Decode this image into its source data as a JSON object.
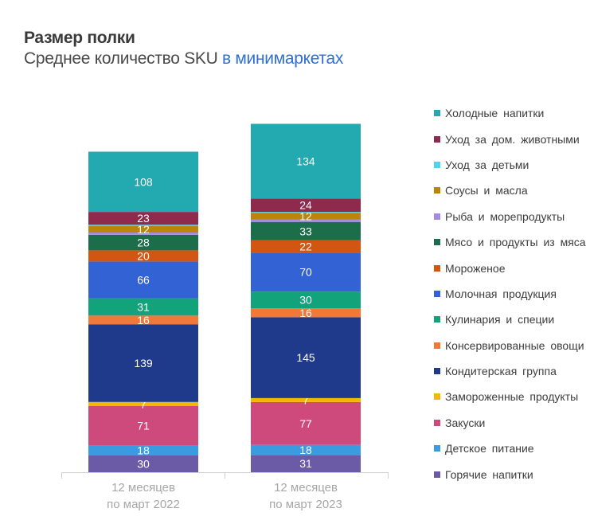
{
  "header": {
    "title": "Размер полки",
    "subtitle_main": "Среднее количество SKU",
    "subtitle_accent": "в минимаркетах"
  },
  "chart_data": {
    "type": "bar",
    "stacked": true,
    "categories": [
      "12 месяцев\nпо март 2022",
      "12 месяцев\nпо март 2023"
    ],
    "category_lines": [
      [
        "12 месяцев",
        "по март 2022"
      ],
      [
        "12 месяцев",
        "по март 2023"
      ]
    ],
    "series": [
      {
        "name": "Горячие напитки",
        "color": "#6b5aa6",
        "values": [
          30,
          31
        ]
      },
      {
        "name": "Детское питание",
        "color": "#3a9be0",
        "values": [
          18,
          18
        ]
      },
      {
        "name": "Закуски",
        "color": "#cf4a7c",
        "values": [
          71,
          77
        ]
      },
      {
        "name": "Замороженные продукты",
        "color": "#f5b800",
        "values": [
          7,
          7
        ]
      },
      {
        "name": "Кондитерская группа",
        "color": "#1f3a8a",
        "values": [
          139,
          145
        ]
      },
      {
        "name": "Консервированные овощи",
        "color": "#f07838",
        "values": [
          16,
          16
        ]
      },
      {
        "name": "Кулинария и специи",
        "color": "#12a37a",
        "values": [
          31,
          30
        ]
      },
      {
        "name": "Молочная продукция",
        "color": "#3262d4",
        "values": [
          66,
          70
        ]
      },
      {
        "name": "Мороженое",
        "color": "#d35512",
        "values": [
          20,
          22
        ]
      },
      {
        "name": "Мясо и продукты из мяса",
        "color": "#1c6d4a",
        "values": [
          28,
          33
        ]
      },
      {
        "name": "Рыба и морепродукты",
        "color": "#a58be6",
        "values": [
          4,
          4
        ]
      },
      {
        "name": "Соусы и масла",
        "color": "#b8860b",
        "values": [
          12,
          12
        ]
      },
      {
        "name": "Уход за детьми",
        "color": "#4fd3f0",
        "values": [
          2,
          2
        ]
      },
      {
        "name": "Уход за дом. животными",
        "color": "#8f2a4d",
        "values": [
          23,
          24
        ]
      },
      {
        "name": "Холодные напитки",
        "color": "#22aab0",
        "values": [
          108,
          134
        ]
      }
    ],
    "value_labels": [
      [
        "30",
        "18",
        "71",
        "7",
        "139",
        "16",
        "31",
        "66",
        "20",
        "28",
        "",
        "12",
        "",
        "23",
        "108"
      ],
      [
        "31",
        "18",
        "77",
        "7",
        "145",
        "16",
        "30",
        "70",
        "22",
        "33",
        "",
        "12",
        "",
        "24",
        "134"
      ]
    ],
    "legend_order": [
      "Холодные напитки",
      "Уход за дом. животными",
      "Уход за детьми",
      "Соусы и масла",
      "Рыба и морепродукты",
      "Мясо и продукты из мяса",
      "Мороженое",
      "Молочная продукция",
      "Кулинария и специи",
      "Консервированные овощи",
      "Кондитерская группа",
      "Замороженные продукты",
      "Закуски",
      "Детское питание",
      "Горячие напитки"
    ],
    "legend_position": "right",
    "ylim": [
      0,
      650
    ],
    "grid": false
  }
}
